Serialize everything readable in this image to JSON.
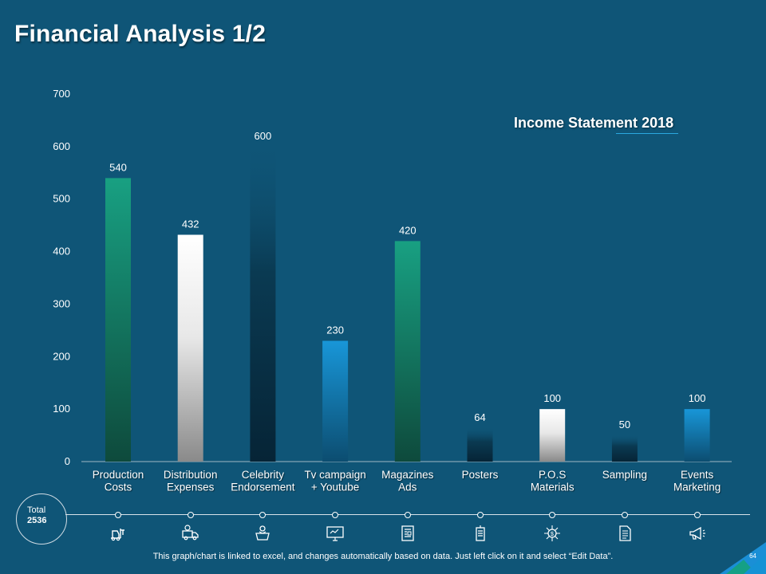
{
  "title": "Financial Analysis 1/2",
  "subtitle_main": "Income Statement",
  "subtitle_year": "2018",
  "total_label": "Total",
  "total_value": "2536",
  "footer": "This graph/chart is linked to excel, and changes automatically based on data. Just left click on it and select “Edit Data”.",
  "page_number": "64",
  "colors": {
    "background": "#0f5577",
    "teal": "#169c7e",
    "white": "#ffffff",
    "navy": "#0b3246",
    "blue": "#1592d5",
    "accent_line": "#2aa8e0"
  },
  "chart_data": {
    "type": "bar",
    "title": "Income Statement 2018",
    "categories": [
      [
        "Production",
        "Costs"
      ],
      [
        "Distribution",
        "Expenses"
      ],
      [
        "Celebrity",
        "Endorsement"
      ],
      [
        "Tv campaign",
        "+ Youtube"
      ],
      [
        "Magazines",
        "Ads"
      ],
      [
        "Posters"
      ],
      [
        "P.O.S",
        "Materials"
      ],
      [
        "Sampling"
      ],
      [
        "Events",
        "Marketing"
      ]
    ],
    "values": [
      540,
      432,
      600,
      230,
      420,
      64,
      100,
      50,
      100
    ],
    "bar_styles": [
      "teal",
      "white",
      "navy",
      "blue",
      "teal",
      "navy",
      "white",
      "navy",
      "blue"
    ],
    "icons": [
      "forklift-icon",
      "delivery-truck-icon",
      "celebrity-icon",
      "monitor-icon",
      "magazine-icon",
      "poster-icon",
      "money-network-icon",
      "document-icon",
      "megaphone-icon"
    ],
    "ylim": [
      0,
      700
    ],
    "yticks": [
      0,
      100,
      200,
      300,
      400,
      500,
      600,
      700
    ],
    "xlabel": "",
    "ylabel": "",
    "grid": false,
    "legend": "none"
  }
}
